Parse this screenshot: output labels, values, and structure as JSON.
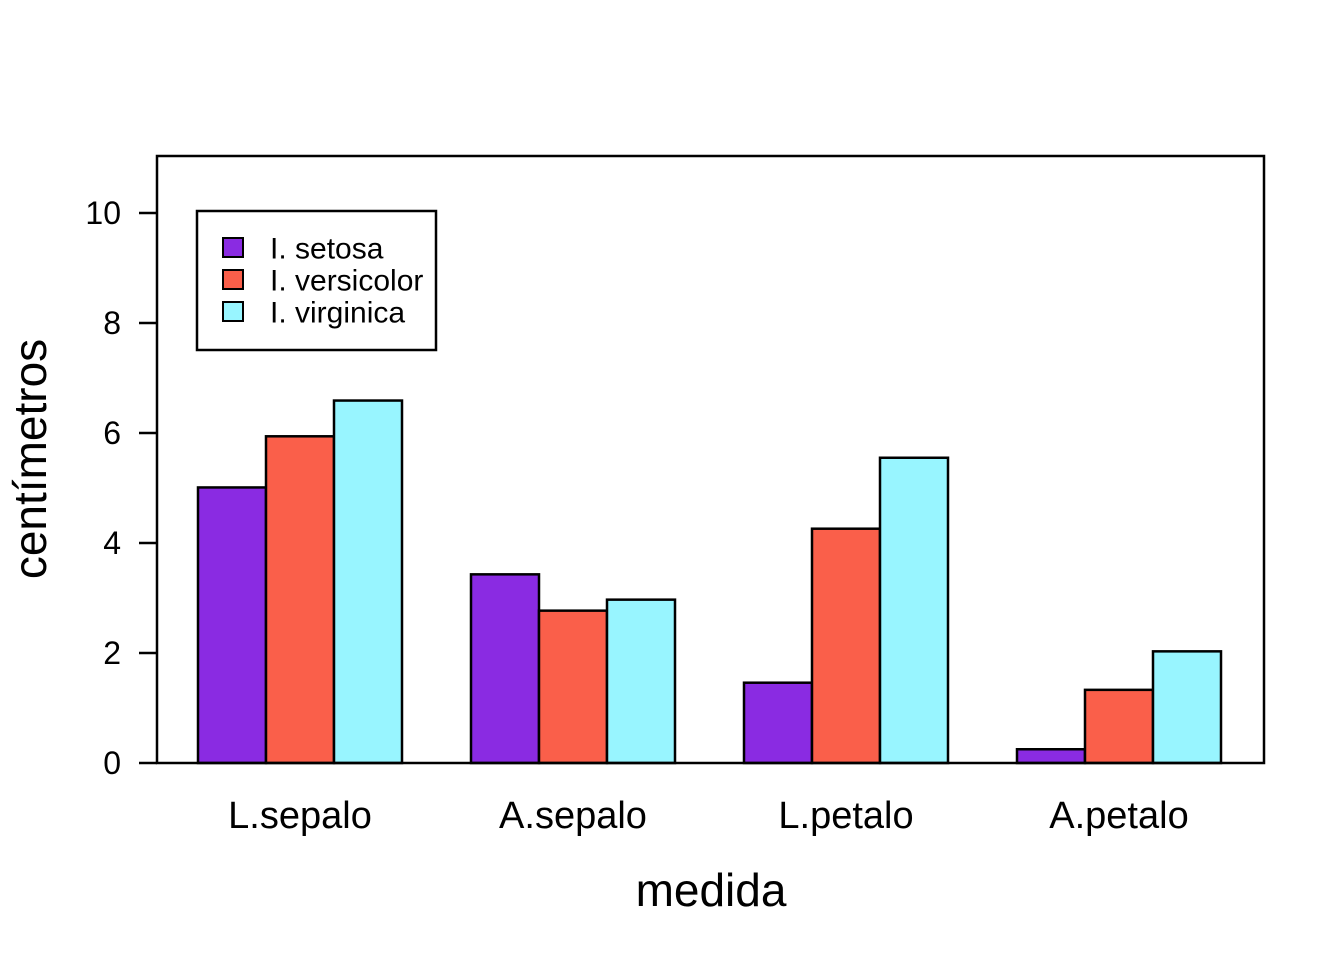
{
  "chart_data": {
    "type": "bar",
    "title": "",
    "xlabel": "medida",
    "ylabel": "centímetros",
    "categories": [
      "L.sepalo",
      "A.sepalo",
      "L.petalo",
      "A.petalo"
    ],
    "series": [
      {
        "name": "I. setosa",
        "color": "#8A2BE2",
        "values": [
          5.01,
          3.43,
          1.46,
          0.25
        ]
      },
      {
        "name": "I. versicolor",
        "color": "#FA5F4A",
        "values": [
          5.94,
          2.77,
          4.26,
          1.33
        ]
      },
      {
        "name": "I. virginica",
        "color": "#98F5FF",
        "values": [
          6.59,
          2.97,
          5.55,
          2.03
        ]
      }
    ],
    "yticks": [
      0,
      2,
      4,
      6,
      8,
      10
    ],
    "ylim": [
      0,
      11.05
    ],
    "grid": false,
    "legend_position": "top-left-inside",
    "axis_color": "#000000",
    "bar_border_color": "#000000",
    "background_color": "#ffffff"
  }
}
